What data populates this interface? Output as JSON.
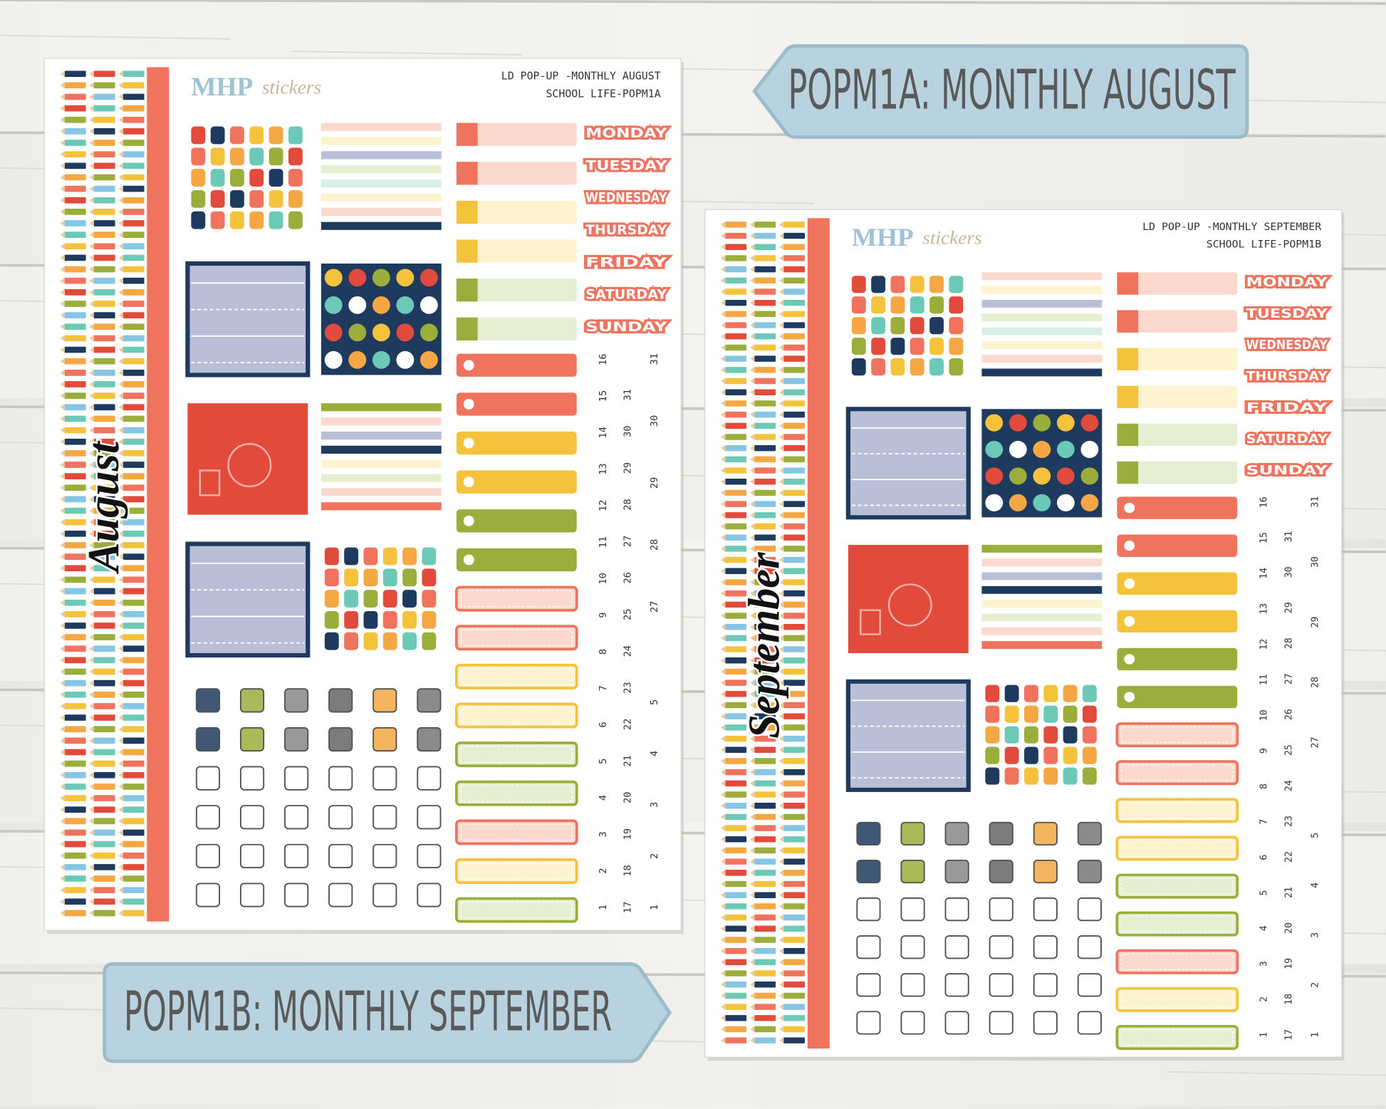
{
  "banners": [
    "POPM1A: MONTHLY AUGUST",
    "POPM1B: MONTHLY SEPTEMBER"
  ],
  "sheets": [
    {
      "logo_main": "MHP",
      "logo_script": "stickers",
      "header": [
        "LD POP-UP -MONTHLY AUGUST",
        "SCHOOL LIFE-POPM1A"
      ],
      "month": "August",
      "days": [
        "MONDAY",
        "TUESDAY",
        "WEDNESDAY",
        "THURSDAY",
        "FRIDAY",
        "SATURDAY",
        "SUNDAY"
      ],
      "date_columns": [
        [
          1,
          2,
          3,
          4,
          5,
          6,
          7,
          8,
          9,
          10,
          11,
          12,
          13,
          14,
          15,
          16
        ],
        [
          17,
          18,
          19,
          20,
          21,
          22,
          23,
          24,
          25,
          26,
          27,
          28,
          29,
          30,
          31
        ],
        [
          1,
          2,
          3,
          4,
          5,
          27,
          28,
          29,
          30,
          31
        ]
      ]
    },
    {
      "logo_main": "MHP",
      "logo_script": "stickers",
      "header": [
        "LD POP-UP -MONTHLY SEPTEMBER",
        "SCHOOL LIFE-POPM1B"
      ],
      "month": "September",
      "days": [
        "MONDAY",
        "TUESDAY",
        "WEDNESDAY",
        "THURSDAY",
        "FRIDAY",
        "SATURDAY",
        "SUNDAY"
      ],
      "date_columns": [
        [
          1,
          2,
          3,
          4,
          5,
          6,
          7,
          8,
          9,
          10,
          11,
          12,
          13,
          14,
          15,
          16
        ],
        [
          17,
          18,
          19,
          20,
          21,
          22,
          23,
          24,
          25,
          26,
          27,
          28,
          29,
          30,
          31
        ],
        [
          1,
          2,
          3,
          4,
          5,
          27,
          28,
          29,
          30,
          31
        ]
      ]
    }
  ]
}
